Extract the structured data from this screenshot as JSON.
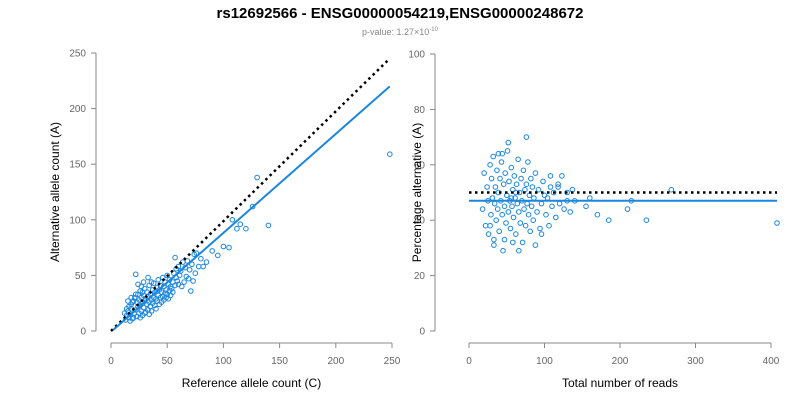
{
  "title": "rs12692566 - ENSG00000054219,ENSG00000248672",
  "subtitle": {
    "prefix": "p-value: 1.27×10",
    "exponent": "-10"
  },
  "colors": {
    "points": "#1a86e0",
    "fit_line": "#1a86e0",
    "reference_line": "#000000",
    "axis": "#888888"
  },
  "chart_data": [
    {
      "type": "scatter",
      "xlabel": "Reference allele count (C)",
      "ylabel": "Alternative allele count (A)",
      "xlim": [
        0,
        250
      ],
      "ylim": [
        0,
        250
      ],
      "xticks": [
        0,
        50,
        100,
        150,
        200,
        250
      ],
      "yticks": [
        0,
        50,
        100,
        150,
        200,
        250
      ],
      "grid": false,
      "reference_line": {
        "style": "dotted",
        "points": [
          [
            0,
            0
          ],
          [
            248,
            245
          ]
        ]
      },
      "fit_line": {
        "style": "solid",
        "points": [
          [
            2,
            1
          ],
          [
            248,
            220
          ]
        ]
      },
      "points": [
        [
          13,
          10
        ],
        [
          14,
          14
        ],
        [
          15,
          18
        ],
        [
          16,
          12
        ],
        [
          17,
          15
        ],
        [
          18,
          20
        ],
        [
          18,
          24
        ],
        [
          19,
          11
        ],
        [
          20,
          27
        ],
        [
          21,
          16
        ],
        [
          21,
          30
        ],
        [
          22,
          19
        ],
        [
          23,
          13
        ],
        [
          23,
          26
        ],
        [
          24,
          22
        ],
        [
          24,
          33
        ],
        [
          25,
          16
        ],
        [
          25,
          28
        ],
        [
          26,
          23
        ],
        [
          26,
          36
        ],
        [
          27,
          18
        ],
        [
          27,
          30
        ],
        [
          28,
          25
        ],
        [
          28,
          14
        ],
        [
          29,
          32
        ],
        [
          29,
          21
        ],
        [
          30,
          27
        ],
        [
          30,
          38
        ],
        [
          31,
          17
        ],
        [
          31,
          29
        ],
        [
          32,
          24
        ],
        [
          32,
          35
        ],
        [
          33,
          19
        ],
        [
          33,
          31
        ],
        [
          34,
          26
        ],
        [
          34,
          41
        ],
        [
          35,
          22
        ],
        [
          35,
          33
        ],
        [
          36,
          28
        ],
        [
          36,
          18
        ],
        [
          37,
          37
        ],
        [
          37,
          25
        ],
        [
          38,
          30
        ],
        [
          38,
          43
        ],
        [
          39,
          23
        ],
        [
          39,
          35
        ],
        [
          40,
          29
        ],
        [
          40,
          20
        ],
        [
          41,
          39
        ],
        [
          41,
          27
        ],
        [
          42,
          32
        ],
        [
          42,
          46
        ],
        [
          43,
          24
        ],
        [
          43,
          37
        ],
        [
          44,
          30
        ],
        [
          44,
          41
        ],
        [
          45,
          26
        ],
        [
          45,
          35
        ],
        [
          46,
          31
        ],
        [
          46,
          48
        ],
        [
          47,
          28
        ],
        [
          47,
          40
        ],
        [
          48,
          34
        ],
        [
          48,
          44
        ],
        [
          49,
          30
        ],
        [
          49,
          37
        ],
        [
          50,
          33
        ],
        [
          50,
          50
        ],
        [
          51,
          29
        ],
        [
          51,
          42
        ],
        [
          52,
          36
        ],
        [
          52,
          46
        ],
        [
          53,
          32
        ],
        [
          53,
          40
        ],
        [
          54,
          38
        ],
        [
          55,
          44
        ],
        [
          55,
          35
        ],
        [
          56,
          52
        ],
        [
          57,
          41
        ],
        [
          57,
          66
        ],
        [
          58,
          48
        ],
        [
          58,
          56
        ],
        [
          59,
          45
        ],
        [
          60,
          42
        ],
        [
          60,
          58
        ],
        [
          61,
          50
        ],
        [
          62,
          54
        ],
        [
          63,
          40
        ],
        [
          64,
          62
        ],
        [
          65,
          44
        ],
        [
          66,
          57
        ],
        [
          67,
          49
        ],
        [
          68,
          63
        ],
        [
          69,
          47
        ],
        [
          70,
          55
        ],
        [
          71,
          36
        ],
        [
          72,
          60
        ],
        [
          73,
          45
        ],
        [
          74,
          69
        ],
        [
          75,
          52
        ],
        [
          76,
          70
        ],
        [
          78,
          58
        ],
        [
          80,
          65
        ],
        [
          82,
          58
        ],
        [
          85,
          62
        ],
        [
          90,
          72
        ],
        [
          95,
          68
        ],
        [
          100,
          76
        ],
        [
          105,
          75
        ],
        [
          108,
          100
        ],
        [
          112,
          92
        ],
        [
          115,
          96
        ],
        [
          120,
          92
        ],
        [
          126,
          112
        ],
        [
          130,
          138
        ],
        [
          140,
          95
        ],
        [
          248,
          159
        ],
        [
          16,
          22
        ],
        [
          17,
          9
        ],
        [
          19,
          26
        ],
        [
          20,
          12
        ],
        [
          22,
          51
        ],
        [
          15,
          27
        ],
        [
          14,
          20
        ],
        [
          12,
          16
        ],
        [
          24,
          42
        ],
        [
          26,
          12
        ],
        [
          28,
          35
        ],
        [
          30,
          16
        ],
        [
          18,
          30
        ],
        [
          22,
          33
        ],
        [
          34,
          15
        ],
        [
          36,
          44
        ],
        [
          27,
          40
        ],
        [
          33,
          48
        ],
        [
          29,
          44
        ]
      ]
    },
    {
      "type": "scatter",
      "xlabel": "Total number of reads",
      "ylabel": "Percentage alternative (A)",
      "xlim": [
        0,
        400
      ],
      "ylim": [
        0,
        100
      ],
      "xticks": [
        0,
        100,
        200,
        300,
        400
      ],
      "yticks": [
        0,
        20,
        40,
        60,
        80,
        100
      ],
      "grid": false,
      "reference_line": {
        "style": "dotted",
        "points": [
          [
            0,
            50
          ],
          [
            408,
            50
          ]
        ]
      },
      "fit_line": {
        "style": "solid",
        "points": [
          [
            0,
            47
          ],
          [
            408,
            47
          ]
        ]
      },
      "points": [
        [
          18,
          44
        ],
        [
          20,
          57
        ],
        [
          22,
          38
        ],
        [
          24,
          52
        ],
        [
          25,
          47
        ],
        [
          26,
          35
        ],
        [
          28,
          60
        ],
        [
          29,
          42
        ],
        [
          30,
          55
        ],
        [
          31,
          48
        ],
        [
          32,
          63
        ],
        [
          33,
          33
        ],
        [
          34,
          46
        ],
        [
          35,
          52
        ],
        [
          36,
          40
        ],
        [
          37,
          58
        ],
        [
          38,
          44
        ],
        [
          39,
          50
        ],
        [
          40,
          36
        ],
        [
          41,
          55
        ],
        [
          42,
          47
        ],
        [
          43,
          61
        ],
        [
          44,
          42
        ],
        [
          45,
          29
        ],
        [
          46,
          53
        ],
        [
          47,
          45
        ],
        [
          48,
          57
        ],
        [
          49,
          39
        ],
        [
          50,
          49
        ],
        [
          51,
          65
        ],
        [
          52,
          43
        ],
        [
          53,
          54
        ],
        [
          54,
          47
        ],
        [
          55,
          37
        ],
        [
          56,
          59
        ],
        [
          57,
          45
        ],
        [
          58,
          51
        ],
        [
          59,
          41
        ],
        [
          60,
          56
        ],
        [
          61,
          48
        ],
        [
          62,
          35
        ],
        [
          63,
          53
        ],
        [
          64,
          46
        ],
        [
          65,
          62
        ],
        [
          66,
          43
        ],
        [
          67,
          50
        ],
        [
          68,
          39
        ],
        [
          69,
          55
        ],
        [
          70,
          47
        ],
        [
          71,
          32
        ],
        [
          72,
          58
        ],
        [
          73,
          44
        ],
        [
          74,
          51
        ],
        [
          75,
          38
        ],
        [
          76,
          53
        ],
        [
          77,
          46
        ],
        [
          78,
          61
        ],
        [
          79,
          42
        ],
        [
          80,
          49
        ],
        [
          81,
          36
        ],
        [
          82,
          55
        ],
        [
          83,
          45
        ],
        [
          84,
          52
        ],
        [
          85,
          40
        ],
        [
          86,
          48
        ],
        [
          88,
          57
        ],
        [
          90,
          43
        ],
        [
          92,
          51
        ],
        [
          94,
          37
        ],
        [
          96,
          46
        ],
        [
          98,
          54
        ],
        [
          100,
          49
        ],
        [
          102,
          42
        ],
        [
          104,
          48
        ],
        [
          106,
          38
        ],
        [
          108,
          52
        ],
        [
          110,
          45
        ],
        [
          112,
          50
        ],
        [
          115,
          41
        ],
        [
          118,
          53
        ],
        [
          120,
          46
        ],
        [
          123,
          56
        ],
        [
          126,
          44
        ],
        [
          130,
          50
        ],
        [
          134,
          43
        ],
        [
          137,
          51
        ],
        [
          140,
          47
        ],
        [
          155,
          45
        ],
        [
          160,
          48
        ],
        [
          170,
          42
        ],
        [
          185,
          40
        ],
        [
          210,
          44
        ],
        [
          215,
          47
        ],
        [
          235,
          40
        ],
        [
          268,
          51
        ],
        [
          408,
          39
        ],
        [
          28,
          38
        ],
        [
          33,
          31
        ],
        [
          47,
          33
        ],
        [
          52,
          68
        ],
        [
          58,
          32
        ],
        [
          76,
          70
        ],
        [
          66,
          29
        ],
        [
          44,
          64
        ],
        [
          39,
          64
        ],
        [
          88,
          31
        ],
        [
          96,
          35
        ],
        [
          108,
          56
        ],
        [
          118,
          52
        ],
        [
          130,
          47
        ],
        [
          56,
          48
        ],
        [
          62,
          50
        ]
      ]
    }
  ]
}
